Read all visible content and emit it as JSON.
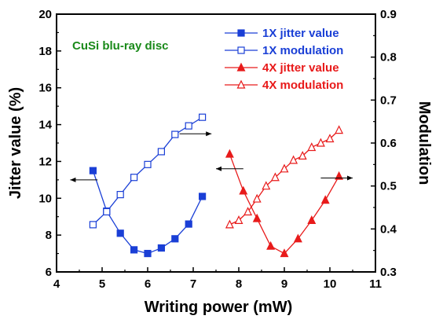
{
  "chart_data": {
    "type": "line",
    "title": "",
    "annotation": "CuSi blu-ray disc",
    "xlabel": "Writing power (mW)",
    "ylabel": "Jitter value (%)",
    "y2label": "Modulation",
    "xlim": [
      4,
      11
    ],
    "ylim": [
      6,
      20
    ],
    "y2lim": [
      0.3,
      0.9
    ],
    "xticks": [
      "4",
      "5",
      "6",
      "7",
      "8",
      "9",
      "10",
      "11"
    ],
    "yticks": [
      "6",
      "8",
      "10",
      "12",
      "14",
      "16",
      "18",
      "20"
    ],
    "y2ticks": [
      "0.3",
      "0.4",
      "0.5",
      "0.6",
      "0.7",
      "0.8",
      "0.9"
    ],
    "grid": false,
    "legend_position": "top-right",
    "series": [
      {
        "name": "1X jitter value",
        "axis": "left",
        "color": "#1a3fd6",
        "marker": "square-filled",
        "x": [
          4.8,
          5.1,
          5.4,
          5.7,
          6.0,
          6.3,
          6.6,
          6.9,
          7.2
        ],
        "y": [
          11.5,
          9.3,
          8.1,
          7.2,
          7.0,
          7.3,
          7.8,
          8.6,
          10.1
        ]
      },
      {
        "name": "1X modulation",
        "axis": "right",
        "color": "#1a3fd6",
        "marker": "square-open",
        "x": [
          4.8,
          5.1,
          5.4,
          5.7,
          6.0,
          6.3,
          6.6,
          6.9,
          7.2
        ],
        "y": [
          0.41,
          0.44,
          0.48,
          0.52,
          0.55,
          0.58,
          0.62,
          0.64,
          0.66
        ]
      },
      {
        "name": "4X jitter value",
        "axis": "left",
        "color": "#e81a1a",
        "marker": "triangle-filled",
        "x": [
          7.8,
          8.1,
          8.4,
          8.7,
          9.0,
          9.3,
          9.6,
          9.9,
          10.2
        ],
        "y": [
          12.4,
          10.4,
          8.9,
          7.4,
          7.0,
          7.8,
          8.8,
          9.9,
          11.2
        ]
      },
      {
        "name": "4X modulation",
        "axis": "right",
        "color": "#e81a1a",
        "marker": "triangle-open",
        "x": [
          7.8,
          8.0,
          8.2,
          8.4,
          8.6,
          8.8,
          9.0,
          9.2,
          9.4,
          9.6,
          9.8,
          10.0,
          10.2
        ],
        "y": [
          0.41,
          0.42,
          0.44,
          0.47,
          0.5,
          0.52,
          0.54,
          0.56,
          0.57,
          0.59,
          0.6,
          0.61,
          0.63
        ]
      }
    ],
    "arrows": [
      {
        "from": [
          4.9,
          11.0
        ],
        "to": [
          4.3,
          11.0
        ],
        "points_to": "left axis"
      },
      {
        "from": [
          6.7,
          13.5
        ],
        "to": [
          7.4,
          13.5
        ],
        "points_to": "right axis"
      },
      {
        "from": [
          8.1,
          11.6
        ],
        "to": [
          7.5,
          11.6
        ],
        "points_to": "left axis"
      },
      {
        "from": [
          9.8,
          11.1
        ],
        "to": [
          10.5,
          11.1
        ],
        "points_to": "right axis"
      }
    ]
  }
}
